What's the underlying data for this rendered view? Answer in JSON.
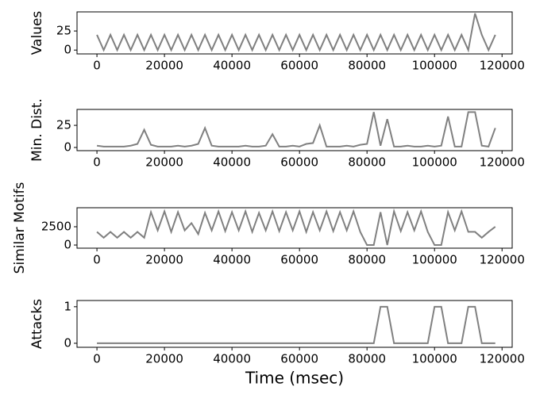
{
  "chart_data": [
    {
      "type": "line",
      "y_label": "Values",
      "x": [
        0,
        2000,
        4000,
        6000,
        8000,
        10000,
        12000,
        14000,
        16000,
        18000,
        20000,
        22000,
        24000,
        26000,
        28000,
        30000,
        32000,
        34000,
        36000,
        38000,
        40000,
        42000,
        44000,
        46000,
        48000,
        50000,
        52000,
        54000,
        56000,
        58000,
        60000,
        62000,
        64000,
        66000,
        68000,
        70000,
        72000,
        74000,
        76000,
        78000,
        80000,
        82000,
        84000,
        86000,
        88000,
        90000,
        92000,
        94000,
        96000,
        98000,
        100000,
        102000,
        104000,
        106000,
        108000,
        110000,
        112000,
        114000,
        116000,
        118000
      ],
      "series": [
        {
          "color": "#808080",
          "values": [
            20,
            0,
            20,
            0,
            20,
            0,
            20,
            0,
            20,
            0,
            20,
            0,
            20,
            0,
            20,
            0,
            20,
            0,
            20,
            0,
            20,
            0,
            20,
            0,
            20,
            0,
            20,
            0,
            20,
            0,
            20,
            0,
            20,
            0,
            20,
            0,
            20,
            0,
            20,
            0,
            20,
            0,
            20,
            0,
            20,
            0,
            20,
            0,
            20,
            0,
            20,
            0,
            20,
            0,
            20,
            0,
            48,
            20,
            0,
            20
          ]
        }
      ],
      "xlim": [
        -5900,
        123000
      ],
      "xticks": [
        0,
        20000,
        40000,
        60000,
        80000,
        100000,
        120000
      ],
      "ylim": [
        -5,
        50
      ],
      "yticks": [
        0,
        25
      ]
    },
    {
      "type": "line",
      "y_label": "Min. Dist.",
      "x": [
        0,
        2000,
        4000,
        6000,
        8000,
        10000,
        12000,
        14000,
        16000,
        18000,
        20000,
        22000,
        24000,
        26000,
        28000,
        30000,
        32000,
        34000,
        36000,
        38000,
        40000,
        42000,
        44000,
        46000,
        48000,
        50000,
        52000,
        54000,
        56000,
        58000,
        60000,
        62000,
        64000,
        66000,
        68000,
        70000,
        72000,
        74000,
        76000,
        78000,
        80000,
        82000,
        84000,
        86000,
        88000,
        90000,
        92000,
        94000,
        96000,
        98000,
        100000,
        102000,
        104000,
        106000,
        108000,
        110000,
        112000,
        114000,
        116000,
        118000
      ],
      "series": [
        {
          "color": "#808080",
          "values": [
            2,
            1,
            1,
            1,
            1,
            2,
            4,
            20,
            3,
            1,
            1,
            1,
            2,
            1,
            2,
            4,
            22,
            2,
            1,
            1,
            1,
            1,
            2,
            1,
            1,
            2,
            15,
            1,
            1,
            2,
            1,
            4,
            5,
            25,
            1,
            1,
            1,
            2,
            1,
            3,
            4,
            40,
            2,
            32,
            1,
            1,
            2,
            1,
            1,
            2,
            1,
            2,
            35,
            1,
            1,
            40,
            40,
            2,
            1,
            22
          ]
        }
      ],
      "xlim": [
        -5900,
        123000
      ],
      "xticks": [
        0,
        20000,
        40000,
        60000,
        80000,
        100000,
        120000
      ],
      "ylim": [
        -3.6,
        43
      ],
      "yticks": [
        0,
        25
      ]
    },
    {
      "type": "line",
      "y_label": "Similar Motifs",
      "x": [
        0,
        2000,
        4000,
        6000,
        8000,
        10000,
        12000,
        14000,
        16000,
        18000,
        20000,
        22000,
        24000,
        26000,
        28000,
        30000,
        32000,
        34000,
        36000,
        38000,
        40000,
        42000,
        44000,
        46000,
        48000,
        50000,
        52000,
        54000,
        56000,
        58000,
        60000,
        62000,
        64000,
        66000,
        68000,
        70000,
        72000,
        74000,
        76000,
        78000,
        80000,
        82000,
        84000,
        86000,
        88000,
        90000,
        92000,
        94000,
        96000,
        98000,
        100000,
        102000,
        104000,
        106000,
        108000,
        110000,
        112000,
        114000,
        116000,
        118000
      ],
      "series": [
        {
          "color": "#808080",
          "values": [
            1800,
            1000,
            1800,
            1000,
            1800,
            1000,
            1800,
            1000,
            4500,
            2000,
            4600,
            1800,
            4500,
            2000,
            3000,
            1500,
            4400,
            2000,
            4600,
            1900,
            4500,
            2000,
            4600,
            1800,
            4400,
            2000,
            4600,
            1900,
            4500,
            2000,
            4600,
            1800,
            4500,
            2000,
            4600,
            1900,
            4500,
            2000,
            4600,
            1800,
            0,
            0,
            4500,
            0,
            4600,
            1900,
            4500,
            2000,
            4600,
            1800,
            0,
            0,
            4500,
            2000,
            4600,
            1800,
            1800,
            1000,
            1800,
            2500
          ]
        }
      ],
      "xlim": [
        -5900,
        123000
      ],
      "xticks": [
        0,
        20000,
        40000,
        60000,
        80000,
        100000,
        120000
      ],
      "ylim": [
        -430,
        5100
      ],
      "yticks": [
        0,
        2500
      ]
    },
    {
      "type": "line",
      "y_label": "Attacks",
      "x_label": "Time (msec)",
      "x": [
        0,
        2000,
        4000,
        6000,
        8000,
        10000,
        12000,
        14000,
        16000,
        18000,
        20000,
        22000,
        24000,
        26000,
        28000,
        30000,
        32000,
        34000,
        36000,
        38000,
        40000,
        42000,
        44000,
        46000,
        48000,
        50000,
        52000,
        54000,
        56000,
        58000,
        60000,
        62000,
        64000,
        66000,
        68000,
        70000,
        72000,
        74000,
        76000,
        78000,
        80000,
        82000,
        84000,
        86000,
        88000,
        90000,
        92000,
        94000,
        96000,
        98000,
        100000,
        102000,
        104000,
        106000,
        108000,
        110000,
        112000,
        114000,
        116000,
        118000
      ],
      "series": [
        {
          "color": "#808080",
          "values": [
            0,
            0,
            0,
            0,
            0,
            0,
            0,
            0,
            0,
            0,
            0,
            0,
            0,
            0,
            0,
            0,
            0,
            0,
            0,
            0,
            0,
            0,
            0,
            0,
            0,
            0,
            0,
            0,
            0,
            0,
            0,
            0,
            0,
            0,
            0,
            0,
            0,
            0,
            0,
            0,
            0,
            0,
            1,
            1,
            0,
            0,
            0,
            0,
            0,
            0,
            1,
            1,
            0,
            0,
            0,
            1,
            1,
            0,
            0,
            0
          ]
        }
      ],
      "xlim": [
        -5900,
        123000
      ],
      "xticks": [
        0,
        20000,
        40000,
        60000,
        80000,
        100000,
        120000
      ],
      "ylim": [
        -0.11,
        1.17
      ],
      "yticks": [
        0,
        1
      ]
    }
  ]
}
